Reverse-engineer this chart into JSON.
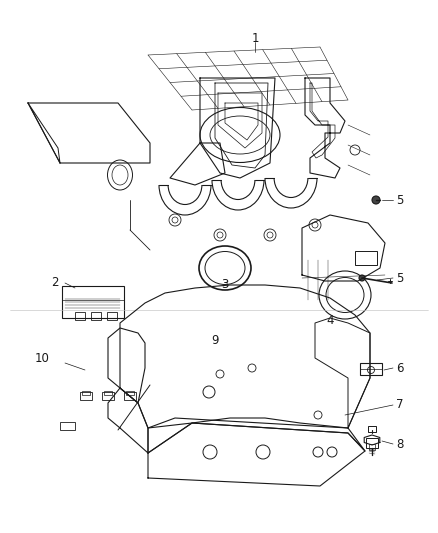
{
  "bg_color": "#ffffff",
  "line_color": "#1a1a1a",
  "fig_width": 4.38,
  "fig_height": 5.33,
  "dpi": 100,
  "font_size": 8.5
}
